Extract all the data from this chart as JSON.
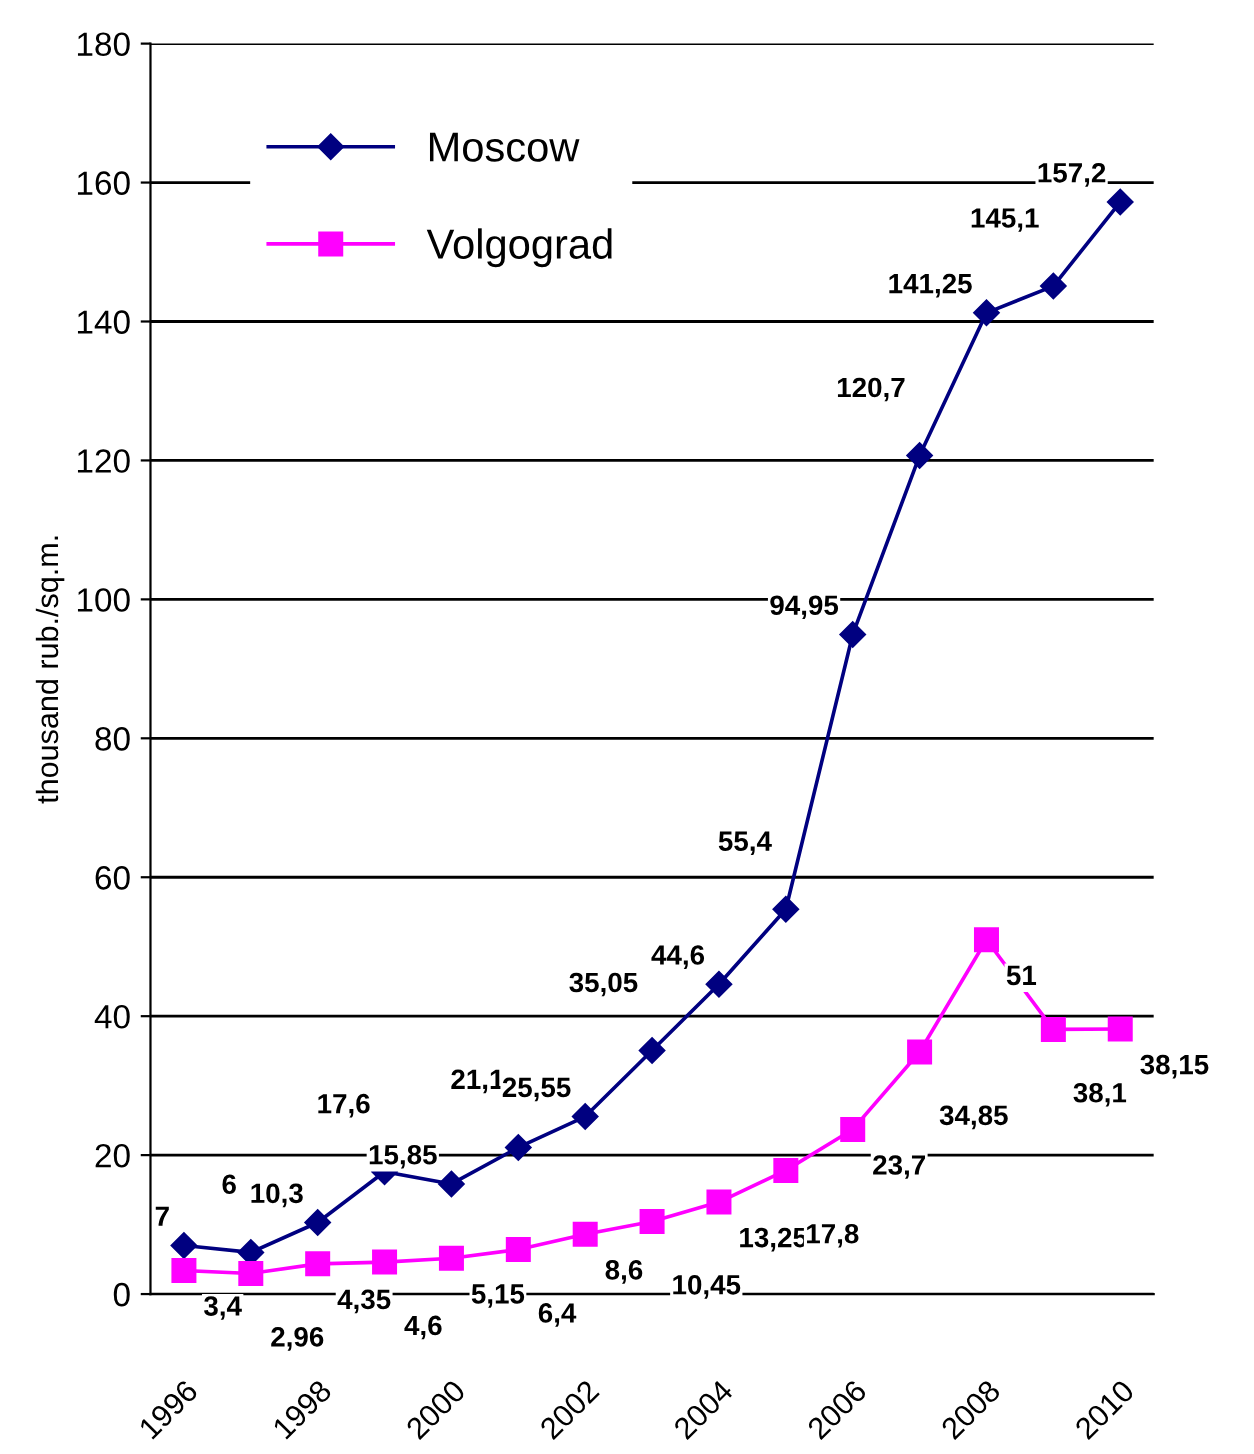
{
  "chart_data": {
    "type": "line",
    "ylabel": "thousand rub./sq.m.",
    "categories": [
      "1996",
      null,
      "1998",
      null,
      "2000",
      null,
      "2002",
      null,
      "2004",
      null,
      "2006",
      null,
      "2008",
      null,
      "2010"
    ],
    "series": [
      {
        "name": "Moscow",
        "color": "#000080",
        "marker": "diamond",
        "values": [
          7,
          6,
          10.3,
          17.6,
          15.85,
          21.1,
          25.55,
          35.05,
          44.6,
          55.4,
          94.95,
          120.7,
          141.25,
          145.1,
          157.2
        ],
        "value_labels": [
          "7",
          "6",
          "10,3",
          "17,6",
          "15,85",
          "21,1",
          "25,55",
          "35,05",
          "44,6",
          "55,4",
          "94,95",
          "120,7",
          "141,25",
          "145,1",
          "157,2"
        ]
      },
      {
        "name": "Volgograd",
        "color": "#ff00ff",
        "marker": "square",
        "values": [
          3.4,
          2.96,
          4.35,
          4.6,
          5.15,
          6.4,
          8.6,
          10.45,
          13.25,
          17.8,
          23.7,
          34.85,
          51,
          38.1,
          38.15
        ],
        "value_labels": [
          "3,4",
          "2,96",
          "4,35",
          "4,6",
          "5,15",
          "6,4",
          "8,6",
          "10,45",
          "13,25",
          "17,8",
          "23,7",
          "34,85",
          "51",
          "38,1",
          "38,15"
        ]
      }
    ],
    "ylim": [
      0,
      180
    ],
    "yticks": [
      0,
      20,
      40,
      60,
      80,
      100,
      120,
      140,
      160,
      180
    ],
    "grid": "y",
    "legend": "top left",
    "line_style": "solid"
  }
}
